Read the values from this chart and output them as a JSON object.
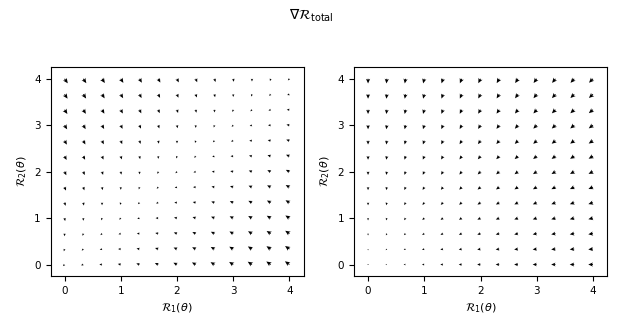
{
  "title": "$\\nabla \\mathcal{R}_{\\mathrm{total}}$",
  "xlabel": "$\\mathcal{R}_1(\\theta)$",
  "ylabel_left": "$\\mathcal{R}_2(\\theta)$",
  "ylabel_right": "$\\mathcal{R}_2(\\theta)$",
  "xlim": [
    -0.25,
    4.25
  ],
  "ylim": [
    -0.25,
    4.25
  ],
  "xticks": [
    0,
    1,
    2,
    3,
    4
  ],
  "yticks": [
    0,
    1,
    2,
    3,
    4
  ],
  "grid_n": 13,
  "arrow_color": "black",
  "background": "white",
  "title_fontsize": 10,
  "label_fontsize": 8,
  "figsize": [
    6.22,
    3.3
  ],
  "dpi": 100
}
